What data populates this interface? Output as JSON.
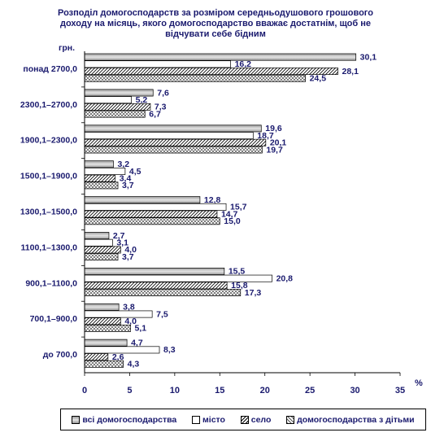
{
  "title": "Розподіл домогосподарств за розміром середньодушового грошового доходу на місяць, якого домогосподарство вважає достатнім, щоб не відчувати себе бідним",
  "chart_data": {
    "type": "bar",
    "orientation": "horizontal",
    "title": "Розподіл домогосподарств за розміром середньодушового грошового доходу на місяць, якого домогосподарство вважає достатнім, щоб не відчувати себе бідним",
    "ylabel": "грн.",
    "xlabel": "%",
    "xlim": [
      0,
      35
    ],
    "xticks": [
      "0",
      "5",
      "10",
      "15",
      "20",
      "25",
      "30",
      "35"
    ],
    "categories": [
      "понад 2700,0",
      "2300,1–2700,0",
      "1900,1–2300,0",
      "1500,1–1900,0",
      "1300,1–1500,0",
      "1100,1–1300,0",
      "900,1–1100,0",
      "700,1–900,0",
      "до 700,0"
    ],
    "series": [
      {
        "name": "всі домогосподарства",
        "labels": [
          "30,1",
          "7,6",
          "19,6",
          "3,2",
          "12,8",
          "2,7",
          "15,5",
          "3,8",
          "4,7"
        ],
        "values": [
          30.1,
          7.6,
          19.6,
          3.2,
          12.8,
          2.7,
          15.5,
          3.8,
          4.7
        ]
      },
      {
        "name": "місто",
        "labels": [
          "16,2",
          "5,2",
          "18,7",
          "4,5",
          "15,7",
          "3,1",
          "20,8",
          "7,5",
          "8,3"
        ],
        "values": [
          16.2,
          5.2,
          18.7,
          4.5,
          15.7,
          3.1,
          20.8,
          7.5,
          8.3
        ]
      },
      {
        "name": "село",
        "labels": [
          "28,1",
          "7,3",
          "20,1",
          "3,4",
          "14,7",
          "4,0",
          "15,8",
          "4,0",
          "2,6"
        ],
        "values": [
          28.1,
          7.3,
          20.1,
          3.4,
          14.7,
          4.0,
          15.8,
          4.0,
          2.6
        ]
      },
      {
        "name": "домогосподарства з дітьми",
        "labels": [
          "24,5",
          "6,7",
          "19,7",
          "3,7",
          "15,0",
          "3,7",
          "17,3",
          "5,1",
          "4,3"
        ],
        "values": [
          24.5,
          6.7,
          19.7,
          3.7,
          15.0,
          3.7,
          17.3,
          5.1,
          4.3
        ]
      }
    ],
    "grid": false,
    "legend_position": "bottom"
  },
  "legend": [
    "всі домогосподарства",
    "місто",
    "село",
    "домогосподарства з дітьми"
  ]
}
